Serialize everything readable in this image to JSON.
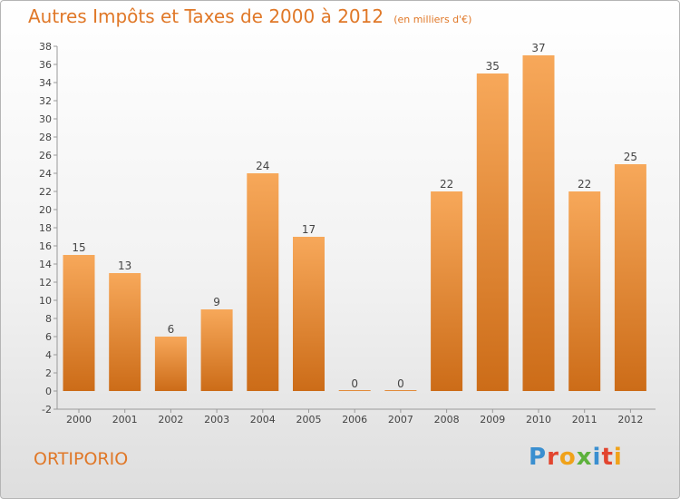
{
  "header": {
    "title": "Autres Impôts et Taxes de 2000 à 2012",
    "subtitle": "(en milliers d'€)"
  },
  "footer": {
    "commune": "ORTIPORIO",
    "logo_text": "Proxiti",
    "logo_colors": [
      "#3a8fd0",
      "#e2452f",
      "#f0a21a",
      "#5db13c",
      "#3a8fd0",
      "#e2452f",
      "#f0a21a"
    ]
  },
  "colors": {
    "bar_top": "#f7a85a",
    "bar_bottom": "#cc6c18",
    "label": "#444444",
    "accent": "#e07828"
  },
  "chart_data": {
    "type": "bar",
    "title": "Autres Impôts et Taxes de 2000 à 2012",
    "subtitle": "(en milliers d'€)",
    "categories": [
      "2000",
      "2001",
      "2002",
      "2003",
      "2004",
      "2005",
      "2006",
      "2007",
      "2008",
      "2009",
      "2010",
      "2011",
      "2012"
    ],
    "values": [
      15,
      13,
      6,
      9,
      24,
      17,
      0,
      0,
      22,
      35,
      37,
      22,
      25
    ],
    "data_labels": [
      "15",
      "13",
      "6",
      "9",
      "24",
      "17",
      "0",
      "0",
      "22",
      "35",
      "37",
      "22",
      "25"
    ],
    "ylim": [
      -2,
      38
    ],
    "yticks": [
      "-2",
      "0",
      "2",
      "4",
      "6",
      "8",
      "10",
      "12",
      "14",
      "16",
      "18",
      "20",
      "22",
      "24",
      "26",
      "28",
      "30",
      "32",
      "34",
      "36",
      "38"
    ],
    "grid": false,
    "legend": "none"
  }
}
